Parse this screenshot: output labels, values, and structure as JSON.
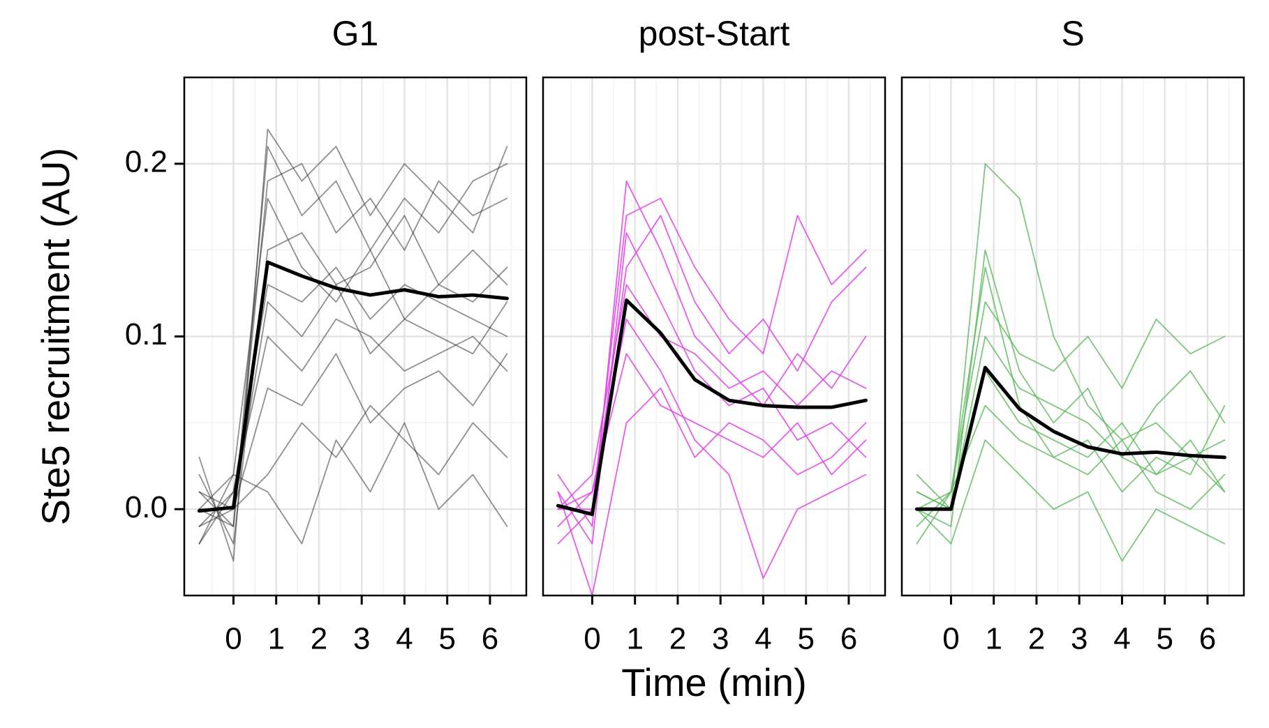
{
  "chart_data": [
    {
      "type": "line",
      "title": "G1",
      "ylabel": "Ste5 recruitment (AU)",
      "x": [
        -0.8,
        0,
        0.8,
        1.6,
        2.4,
        3.2,
        4.0,
        4.8,
        5.6,
        6.4
      ],
      "xlim": [
        -1.15,
        6.85
      ],
      "xticks": [
        0,
        1,
        2,
        3,
        4,
        5,
        6
      ],
      "xminor": [
        -0.5,
        0.5,
        1.5,
        2.5,
        3.5,
        4.5,
        5.5,
        6.5
      ],
      "ylim": [
        -0.05,
        0.25
      ],
      "yticks": [
        {
          "value": 0,
          "label": "0.0"
        },
        0.1,
        0.2
      ],
      "yminor": [
        -0.05,
        0.05,
        0.15,
        0.25
      ],
      "grid": true,
      "series": [
        {
          "color": "#333333",
          "opacity": 0.55,
          "width": 1.8,
          "values": [
            0.01,
            -0.01,
            0.21,
            0.17,
            0.19,
            0.15,
            0.18,
            0.16,
            0.19,
            0.2
          ]
        },
        {
          "color": "#333333",
          "opacity": 0.55,
          "width": 1.8,
          "values": [
            -0.02,
            0.02,
            0.18,
            0.14,
            0.12,
            0.15,
            0.11,
            0.13,
            0.12,
            0.14
          ]
        },
        {
          "color": "#333333",
          "opacity": 0.55,
          "width": 1.8,
          "values": [
            0.0,
            0.0,
            0.12,
            0.1,
            0.13,
            0.09,
            0.11,
            0.1,
            0.09,
            0.12
          ]
        },
        {
          "color": "#333333",
          "opacity": 0.55,
          "width": 1.8,
          "values": [
            0.02,
            -0.02,
            0.15,
            0.16,
            0.13,
            0.14,
            0.17,
            0.13,
            0.15,
            0.13
          ]
        },
        {
          "color": "#333333",
          "opacity": 0.55,
          "width": 1.8,
          "values": [
            -0.01,
            0.01,
            0.1,
            0.08,
            0.11,
            0.1,
            0.08,
            0.09,
            0.1,
            0.08
          ]
        },
        {
          "color": "#333333",
          "opacity": 0.55,
          "width": 1.8,
          "values": [
            0.01,
            0.0,
            0.02,
            0.05,
            0.03,
            0.06,
            0.04,
            0.02,
            0.05,
            0.03
          ]
        },
        {
          "color": "#333333",
          "opacity": 0.55,
          "width": 1.8,
          "values": [
            0.0,
            -0.01,
            0.19,
            0.2,
            0.16,
            0.18,
            0.15,
            0.19,
            0.17,
            0.18
          ]
        },
        {
          "color": "#333333",
          "opacity": 0.55,
          "width": 1.8,
          "values": [
            -0.02,
            0.01,
            0.13,
            0.12,
            0.14,
            0.11,
            0.13,
            0.12,
            0.11,
            0.1
          ]
        },
        {
          "color": "#333333",
          "opacity": 0.55,
          "width": 1.8,
          "values": [
            0.03,
            -0.03,
            0.22,
            0.19,
            0.21,
            0.17,
            0.2,
            0.18,
            0.16,
            0.21
          ]
        },
        {
          "color": "#333333",
          "opacity": 0.55,
          "width": 1.8,
          "values": [
            0.0,
            0.02,
            0.01,
            -0.02,
            0.04,
            0.01,
            0.05,
            0.0,
            0.02,
            -0.01
          ]
        },
        {
          "color": "#333333",
          "opacity": 0.55,
          "width": 1.8,
          "values": [
            -0.01,
            0.0,
            0.07,
            0.06,
            0.09,
            0.05,
            0.07,
            0.08,
            0.06,
            0.09
          ]
        },
        {
          "color": "#000000",
          "opacity": 1,
          "width": 5,
          "values": [
            -0.001,
            0.001,
            0.143,
            0.135,
            0.128,
            0.124,
            0.127,
            0.123,
            0.124,
            0.122
          ]
        }
      ]
    },
    {
      "type": "line",
      "title": "post-Start",
      "xlabel": "Time (min)",
      "x": [
        -0.8,
        0,
        0.8,
        1.6,
        2.4,
        3.2,
        4.0,
        4.8,
        5.6,
        6.4
      ],
      "xlim": [
        -1.15,
        6.85
      ],
      "xticks": [
        0,
        1,
        2,
        3,
        4,
        5,
        6
      ],
      "xminor": [
        -0.5,
        0.5,
        1.5,
        2.5,
        3.5,
        4.5,
        5.5,
        6.5
      ],
      "ylim": [
        -0.05,
        0.25
      ],
      "yticks": [
        {
          "value": 0,
          "label": "0.0"
        },
        0.1,
        0.2
      ],
      "yminor": [
        -0.05,
        0.05,
        0.15,
        0.25
      ],
      "grid": true,
      "series": [
        {
          "color": "#e040e8",
          "opacity": 0.85,
          "width": 1.8,
          "values": [
            0.02,
            -0.01,
            0.19,
            0.15,
            0.1,
            0.08,
            0.06,
            0.09,
            0.07,
            0.1
          ]
        },
        {
          "color": "#e040e8",
          "opacity": 0.85,
          "width": 1.8,
          "values": [
            0.0,
            0.0,
            0.14,
            0.17,
            0.12,
            0.09,
            0.11,
            0.08,
            0.12,
            0.14
          ]
        },
        {
          "color": "#e040e8",
          "opacity": 0.85,
          "width": 1.8,
          "values": [
            -0.01,
            0.01,
            0.09,
            0.06,
            0.05,
            0.04,
            0.03,
            0.05,
            0.02,
            0.04
          ]
        },
        {
          "color": "#e040e8",
          "opacity": 0.85,
          "width": 1.8,
          "values": [
            0.01,
            -0.02,
            0.16,
            0.12,
            0.08,
            0.06,
            0.07,
            0.04,
            0.05,
            0.03
          ]
        },
        {
          "color": "#e040e8",
          "opacity": 0.85,
          "width": 1.8,
          "values": [
            0.0,
            0.01,
            0.11,
            0.08,
            0.04,
            0.02,
            -0.04,
            0.0,
            0.01,
            0.02
          ]
        },
        {
          "color": "#e040e8",
          "opacity": 0.85,
          "width": 1.8,
          "values": [
            -0.02,
            0.0,
            0.17,
            0.18,
            0.14,
            0.11,
            0.09,
            0.17,
            0.13,
            0.15
          ]
        },
        {
          "color": "#e040e8",
          "opacity": 0.85,
          "width": 1.8,
          "values": [
            0.01,
            -0.05,
            0.05,
            0.07,
            0.03,
            0.05,
            0.04,
            0.02,
            0.03,
            0.05
          ]
        },
        {
          "color": "#e040e8",
          "opacity": 0.85,
          "width": 1.8,
          "values": [
            0.0,
            0.02,
            0.13,
            0.1,
            0.09,
            0.07,
            0.08,
            0.06,
            0.08,
            0.07
          ]
        },
        {
          "color": "#000000",
          "opacity": 1,
          "width": 5,
          "values": [
            0.002,
            -0.003,
            0.121,
            0.102,
            0.075,
            0.063,
            0.06,
            0.059,
            0.059,
            0.063
          ]
        }
      ]
    },
    {
      "type": "line",
      "title": "S",
      "x": [
        -0.8,
        0,
        0.8,
        1.6,
        2.4,
        3.2,
        4.0,
        4.8,
        5.6,
        6.4
      ],
      "xlim": [
        -1.15,
        6.85
      ],
      "xticks": [
        0,
        1,
        2,
        3,
        4,
        5,
        6
      ],
      "xminor": [
        -0.5,
        0.5,
        1.5,
        2.5,
        3.5,
        4.5,
        5.5,
        6.5
      ],
      "ylim": [
        -0.05,
        0.25
      ],
      "yticks": [
        {
          "value": 0,
          "label": "0.0"
        },
        0.1,
        0.2
      ],
      "yminor": [
        -0.05,
        0.05,
        0.15,
        0.25
      ],
      "grid": true,
      "series": [
        {
          "color": "#5cb85c",
          "opacity": 0.8,
          "width": 1.8,
          "values": [
            0.01,
            0.0,
            0.2,
            0.18,
            0.1,
            0.06,
            0.04,
            0.05,
            0.03,
            0.04
          ]
        },
        {
          "color": "#5cb85c",
          "opacity": 0.8,
          "width": 1.8,
          "values": [
            0.0,
            -0.01,
            0.15,
            0.08,
            0.05,
            0.07,
            0.03,
            0.02,
            0.04,
            0.01
          ]
        },
        {
          "color": "#5cb85c",
          "opacity": 0.8,
          "width": 1.8,
          "values": [
            -0.01,
            0.01,
            0.06,
            0.04,
            0.03,
            0.02,
            0.04,
            0.01,
            0.0,
            0.02
          ]
        },
        {
          "color": "#5cb85c",
          "opacity": 0.8,
          "width": 1.8,
          "values": [
            0.02,
            0.0,
            0.1,
            0.07,
            0.06,
            0.05,
            0.03,
            0.06,
            0.08,
            0.05
          ]
        },
        {
          "color": "#5cb85c",
          "opacity": 0.8,
          "width": 1.8,
          "values": [
            0.0,
            -0.02,
            0.04,
            0.02,
            0.0,
            0.01,
            -0.03,
            0.0,
            -0.01,
            -0.02
          ]
        },
        {
          "color": "#5cb85c",
          "opacity": 0.8,
          "width": 1.8,
          "values": [
            -0.02,
            0.01,
            0.12,
            0.09,
            0.08,
            0.1,
            0.07,
            0.11,
            0.09,
            0.1
          ]
        },
        {
          "color": "#5cb85c",
          "opacity": 0.8,
          "width": 1.8,
          "values": [
            0.01,
            0.0,
            0.08,
            0.05,
            0.04,
            0.03,
            0.05,
            0.02,
            0.03,
            0.01
          ]
        },
        {
          "color": "#5cb85c",
          "opacity": 0.8,
          "width": 1.8,
          "values": [
            0.0,
            0.01,
            0.14,
            0.06,
            0.03,
            0.04,
            0.01,
            0.03,
            0.02,
            0.06
          ]
        },
        {
          "color": "#000000",
          "opacity": 1,
          "width": 5,
          "values": [
            0.0,
            0.0,
            0.082,
            0.058,
            0.045,
            0.036,
            0.032,
            0.033,
            0.031,
            0.03
          ]
        }
      ]
    }
  ]
}
